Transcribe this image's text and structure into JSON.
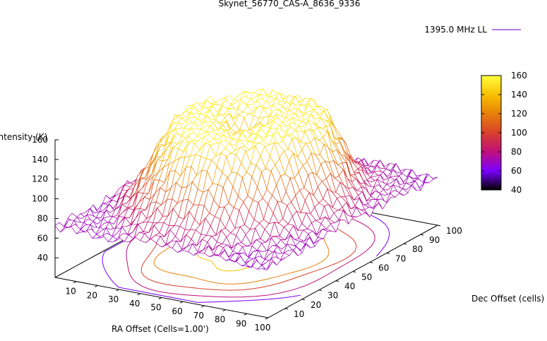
{
  "chart_data": {
    "type": "surface3d",
    "title": "Skynet_56770_CAS-A_8636_9336",
    "xlabel": "RA Offset (Cells=1.00')",
    "ylabel": "Dec Offset (cells)",
    "zlabel": "Intensity (K)",
    "xlim": [
      0,
      100
    ],
    "ylim": [
      0,
      100
    ],
    "zlim": [
      20,
      160
    ],
    "xticks": [
      "10",
      "20",
      "30",
      "40",
      "50",
      "60",
      "70",
      "80",
      "90",
      "100"
    ],
    "yticks": [
      "10",
      "20",
      "30",
      "40",
      "50",
      "60",
      "70",
      "80",
      "90",
      "100"
    ],
    "zticks": [
      "40",
      "60",
      "80",
      "100",
      "120",
      "140",
      "160"
    ],
    "colorbar": {
      "range": [
        40,
        160
      ],
      "ticks": [
        "40",
        "60",
        "80",
        "100",
        "120",
        "140",
        "160"
      ],
      "palette": [
        "#000000",
        "#7a00ff",
        "#c0107a",
        "#d8402a",
        "#e8800a",
        "#f8c000",
        "#ffff40"
      ]
    },
    "legend": {
      "entries": [
        {
          "name": "1395.0 MHz LL"
        }
      ],
      "placement": "top-right"
    },
    "contour_levels": [
      60,
      80,
      100,
      120,
      140
    ],
    "surface_model": {
      "center": [
        50,
        50
      ],
      "ring_peak_K": 155,
      "ring_radius_cells": 25,
      "center_dip_K": 130,
      "edge_K": 70,
      "grid_step": 2.5
    },
    "grid": false
  }
}
